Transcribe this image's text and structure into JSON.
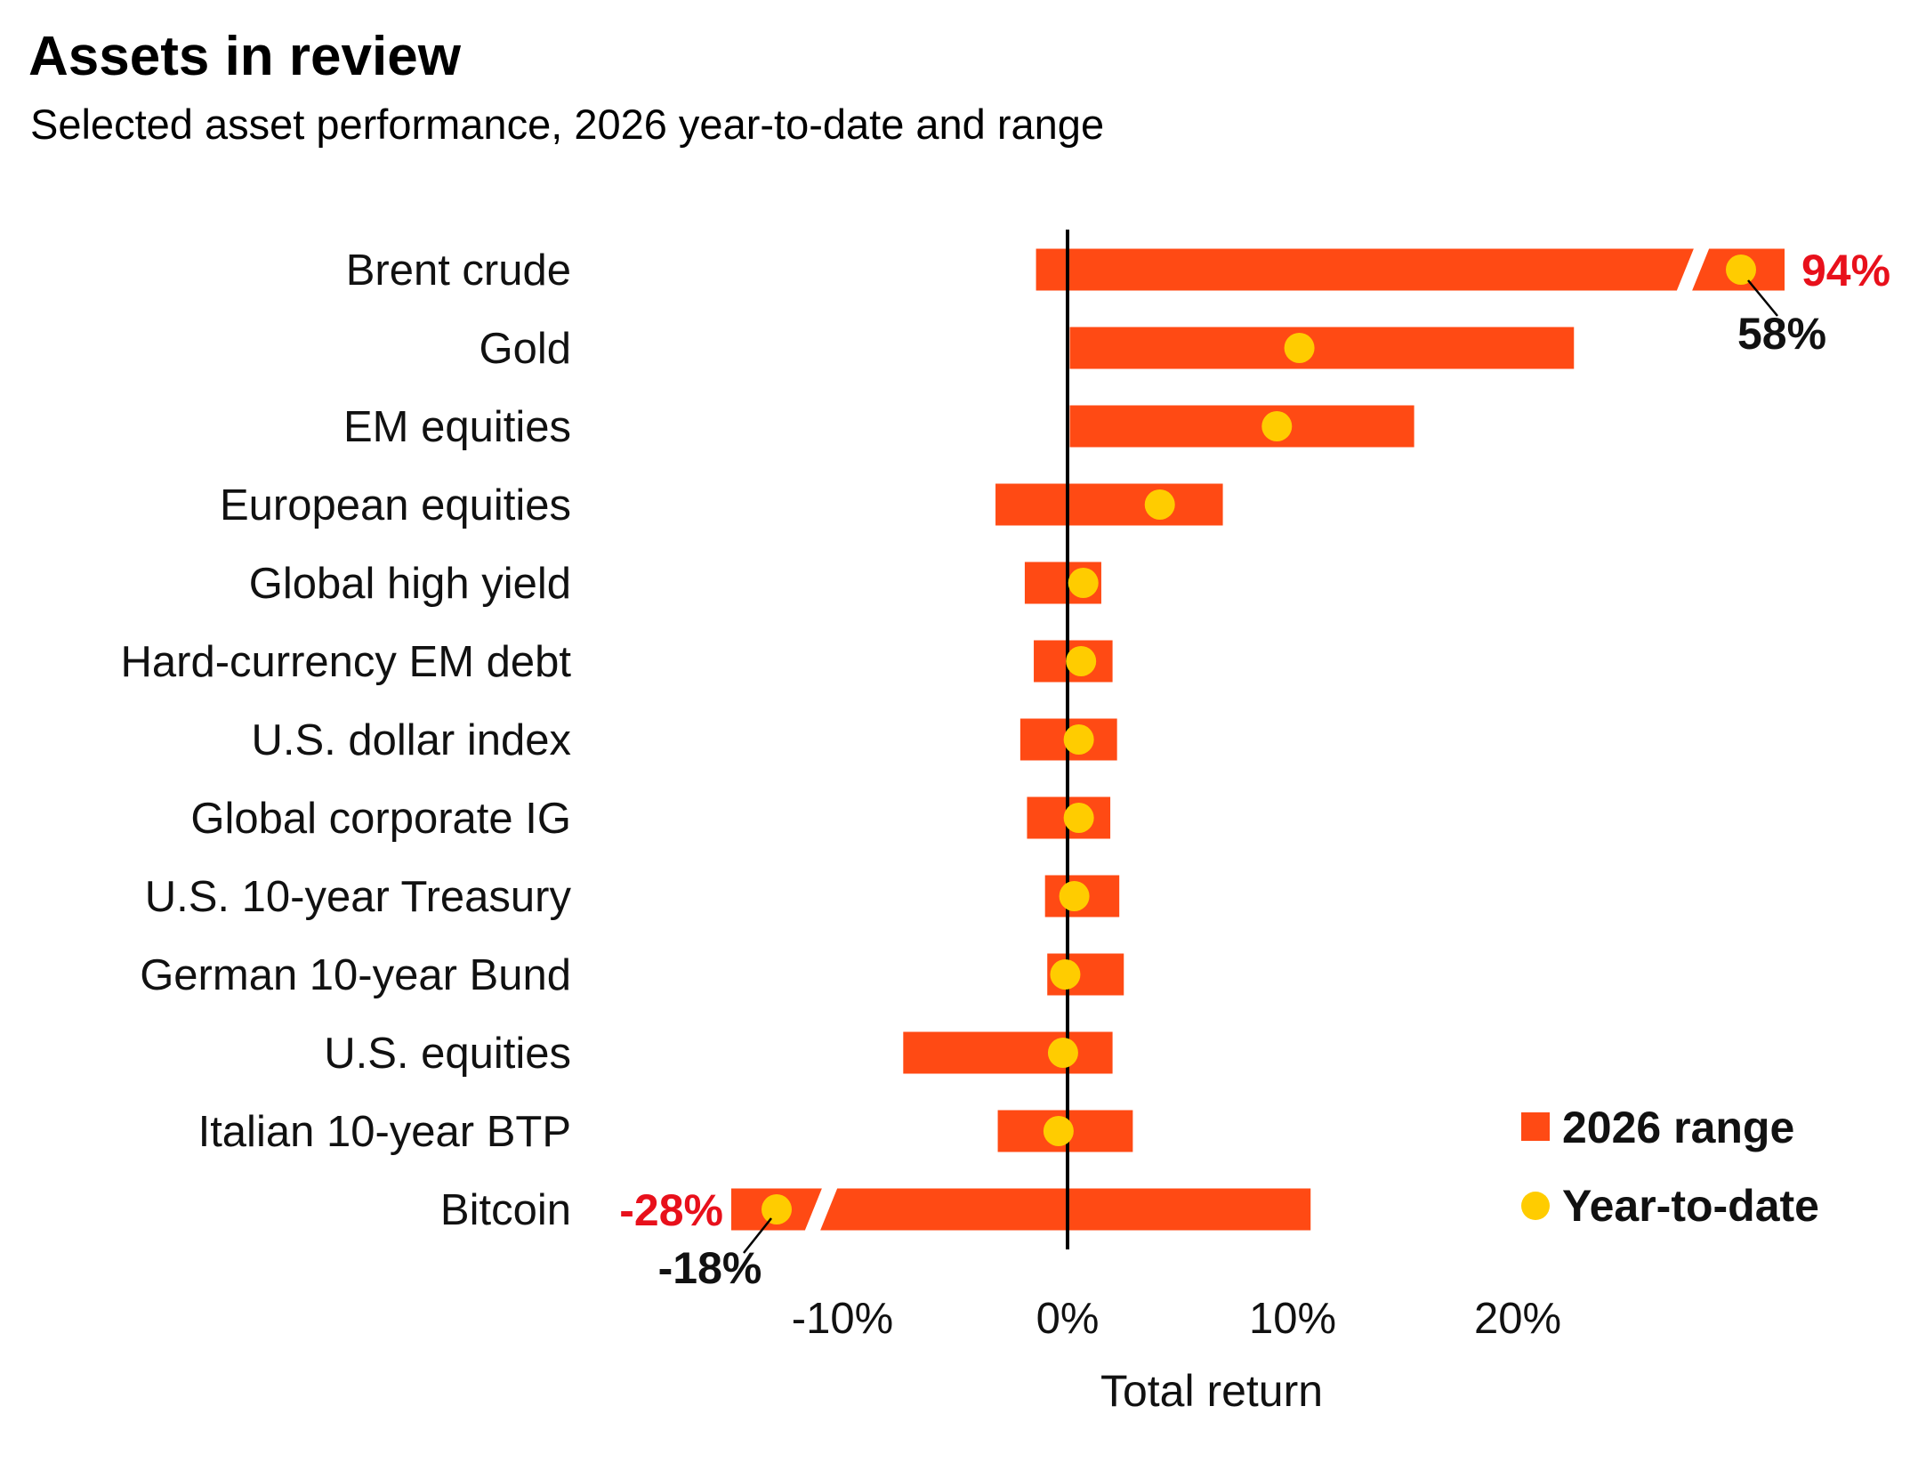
{
  "title": "Assets in review",
  "subtitle": "Selected asset performance, 2026 year-to-date and range",
  "colors": {
    "range": "#ff4a14",
    "ytd": "#ffcc00",
    "callout_red": "#e8101b"
  },
  "chart_data": {
    "type": "range-dot",
    "orientation": "horizontal",
    "xlabel": "Total return",
    "ylabel": "",
    "xlim": [
      -15,
      32
    ],
    "x_ticks": [
      -10,
      0,
      10,
      20
    ],
    "x_tick_labels": [
      "-10%",
      "0%",
      "10%",
      "20%"
    ],
    "grid": false,
    "legend_position": "bottom-right",
    "series": [
      {
        "name": "2026 range",
        "kind": "range"
      },
      {
        "name": "Year-to-date",
        "kind": "dot"
      }
    ],
    "categories": [
      "Brent crude",
      "Gold",
      "EM equities",
      "European equities",
      "Global high yield",
      "Hard-currency EM debt",
      "U.S. dollar index",
      "Global corporate IG",
      "U.S. 10-year Treasury",
      "German 10-year Bund",
      "U.S. equities",
      "Italian 10-year BTP",
      "Bitcoin"
    ],
    "range_low": [
      -1.4,
      0.1,
      0.1,
      -3.2,
      -1.9,
      -1.5,
      -2.1,
      -1.8,
      -1.0,
      -0.9,
      -7.3,
      -3.1,
      -28
    ],
    "range_high": [
      94,
      22.5,
      15.4,
      6.9,
      1.5,
      2.0,
      2.2,
      1.9,
      2.3,
      2.5,
      2.0,
      2.9,
      10.8
    ],
    "ytd": [
      58,
      10.3,
      9.3,
      4.1,
      0.7,
      0.6,
      0.5,
      0.5,
      0.3,
      -0.1,
      -0.2,
      -0.4,
      -18
    ],
    "annotations": [
      {
        "category": "Brent crude",
        "range_high_label": "94%",
        "ytd_label": "58%"
      },
      {
        "category": "Bitcoin",
        "range_low_label": "-28%",
        "ytd_label": "-18%"
      }
    ]
  }
}
